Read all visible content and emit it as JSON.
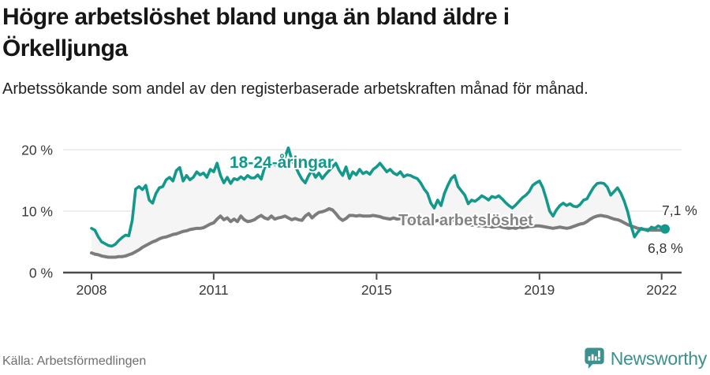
{
  "title": "Högre arbetslöshet bland unga än bland äldre i Örkelljunga",
  "subtitle": "Arbetssökande som andel av den registerbaserade arbetskraften månad för månad.",
  "source": "Källa: Arbetsförmedlingen",
  "brand": {
    "name": "Newsworthy",
    "icon": "newsworthy-chart-bubble-icon",
    "color": "#3a9190"
  },
  "colors": {
    "young_line": "#12998b",
    "total_line": "#7c7c7c",
    "total_label": "#848484",
    "band_fill": "#f5f5f5",
    "grid": "#dcdcdc",
    "axis": "#4a4a4a",
    "tick_text": "#3a3a3a",
    "value_text": "#333333"
  },
  "chart_data": {
    "type": "line",
    "title": "Högre arbetslöshet bland unga än bland äldre i Örkelljunga",
    "frequency": "monthly",
    "x_start": "2008-01",
    "x_end": "2022-02",
    "ylim": [
      0,
      21
    ],
    "grid": "horizontal",
    "legend_position": "inline-labels",
    "yticks": [
      {
        "value": 0,
        "label": "0 %"
      },
      {
        "value": 10,
        "label": "10 %"
      },
      {
        "value": 20,
        "label": "20 %"
      }
    ],
    "xticks": [
      {
        "label": "2008",
        "month": 0
      },
      {
        "label": "2011",
        "month": 36
      },
      {
        "label": "2015",
        "month": 84
      },
      {
        "label": "2019",
        "month": 132
      },
      {
        "label": "2022",
        "month": 168
      }
    ],
    "series": [
      {
        "name": "18-24-åringar",
        "end_label": "7,1 %",
        "end_value": 7.1,
        "values": [
          7.2,
          6.9,
          5.8,
          5.0,
          4.7,
          4.4,
          4.3,
          4.6,
          5.2,
          5.7,
          6.1,
          6.0,
          8.5,
          13.6,
          14.0,
          13.5,
          14.2,
          11.8,
          11.3,
          12.9,
          13.8,
          14.0,
          15.1,
          15.5,
          14.9,
          16.6,
          17.1,
          14.9,
          15.8,
          15.1,
          15.5,
          16.4,
          15.9,
          16.2,
          15.5,
          16.8,
          16.4,
          17.8,
          15.8,
          14.6,
          15.5,
          14.5,
          15.3,
          15.1,
          15.6,
          15.2,
          15.8,
          15.4,
          15.4,
          15.9,
          15.2,
          17.1,
          17.6,
          17.9,
          17.5,
          18.1,
          17.8,
          18.8,
          20.3,
          18.4,
          17.4,
          16.2,
          15.2,
          14.6,
          15.8,
          16.6,
          15.5,
          16.2,
          15.3,
          16.0,
          16.6,
          17.2,
          17.8,
          16.6,
          15.8,
          17.2,
          15.3,
          16.4,
          15.9,
          16.8,
          16.1,
          16.4,
          16.0,
          16.8,
          17.2,
          17.8,
          17.1,
          16.4,
          16.8,
          16.2,
          15.9,
          16.4,
          15.6,
          15.9,
          15.8,
          15.5,
          15.3,
          14.6,
          13.6,
          12.9,
          11.3,
          10.5,
          11.8,
          10.9,
          12.9,
          14.2,
          15.3,
          15.8,
          14.0,
          13.3,
          12.6,
          11.2,
          11.8,
          11.6,
          12.0,
          12.5,
          12.2,
          11.8,
          12.4,
          12.2,
          12.5,
          12.0,
          11.4,
          10.9,
          10.5,
          11.0,
          11.6,
          12.2,
          12.6,
          13.2,
          14.2,
          14.6,
          14.9,
          13.8,
          12.0,
          10.0,
          9.2,
          10.2,
          10.9,
          11.3,
          10.9,
          11.2,
          10.8,
          10.7,
          11.1,
          11.8,
          12.0,
          13.0,
          13.9,
          14.5,
          14.6,
          14.5,
          13.9,
          12.6,
          13.2,
          13.8,
          12.9,
          11.6,
          9.9,
          7.6,
          5.8,
          6.6,
          7.2,
          7.0,
          6.8,
          7.4,
          7.2,
          7.6,
          7.3,
          7.1
        ]
      },
      {
        "name": "Total arbetslöshet",
        "end_label": "6,8 %",
        "end_value": 6.8,
        "values": [
          3.2,
          3.0,
          2.9,
          2.7,
          2.6,
          2.5,
          2.5,
          2.5,
          2.6,
          2.6,
          2.7,
          2.9,
          3.1,
          3.4,
          3.7,
          4.1,
          4.4,
          4.7,
          5.0,
          5.2,
          5.5,
          5.7,
          5.8,
          6.0,
          6.2,
          6.3,
          6.5,
          6.7,
          6.8,
          7.0,
          7.1,
          7.2,
          7.2,
          7.3,
          7.6,
          7.9,
          8.1,
          8.7,
          9.2,
          8.6,
          8.9,
          8.3,
          8.7,
          8.3,
          9.2,
          8.6,
          8.3,
          8.4,
          8.6,
          9.0,
          9.3,
          8.9,
          8.7,
          9.2,
          8.7,
          8.9,
          9.0,
          9.2,
          8.9,
          8.6,
          8.8,
          8.6,
          8.5,
          9.2,
          9.6,
          8.9,
          9.4,
          9.8,
          9.9,
          10.1,
          10.4,
          10.2,
          9.6,
          8.9,
          8.5,
          8.8,
          9.3,
          9.3,
          9.2,
          9.3,
          9.2,
          9.2,
          9.2,
          9.3,
          9.2,
          9.1,
          8.9,
          8.8,
          8.7,
          8.9,
          8.7,
          8.8,
          8.6,
          8.7,
          8.5,
          8.6,
          8.7,
          8.6,
          8.5,
          8.6,
          8.4,
          8.3,
          8.5,
          8.3,
          8.4,
          8.5,
          8.6,
          8.5,
          8.4,
          8.2,
          8.0,
          7.8,
          7.7,
          7.8,
          7.6,
          7.7,
          7.5,
          7.6,
          7.4,
          7.5,
          7.6,
          7.4,
          7.3,
          7.2,
          7.3,
          7.2,
          7.4,
          7.3,
          7.4,
          7.5,
          7.5,
          7.6,
          7.6,
          7.5,
          7.4,
          7.3,
          7.2,
          7.3,
          7.4,
          7.3,
          7.2,
          7.3,
          7.5,
          7.7,
          7.9,
          8.0,
          8.3,
          8.7,
          9.0,
          9.2,
          9.3,
          9.2,
          9.1,
          8.9,
          8.7,
          8.6,
          8.4,
          8.1,
          7.8,
          7.6,
          7.4,
          7.2,
          7.1,
          7.0,
          7.0,
          6.9,
          6.9,
          6.9,
          6.9,
          6.8
        ]
      }
    ]
  }
}
